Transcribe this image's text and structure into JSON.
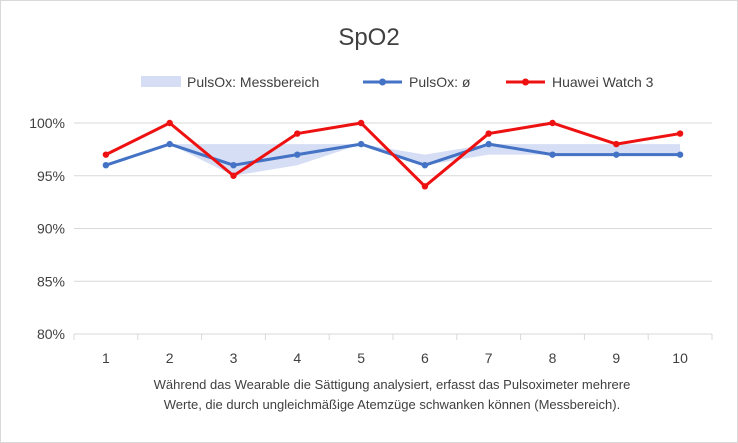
{
  "chart_data": {
    "type": "line",
    "title": "SpO2",
    "xlabel": "",
    "ylabel": "",
    "categories": [
      "1",
      "2",
      "3",
      "4",
      "5",
      "6",
      "7",
      "8",
      "9",
      "10"
    ],
    "ylim": [
      80,
      100
    ],
    "yticks": [
      80,
      85,
      90,
      95,
      100
    ],
    "ytick_labels": [
      "80%",
      "85%",
      "90%",
      "95%",
      "100%"
    ],
    "grid": true,
    "legend_position": "top",
    "range_band": {
      "name": "PulsOx: Messbereich",
      "low": [
        96,
        98,
        95,
        96,
        98,
        96,
        97,
        97,
        97,
        97
      ],
      "high": [
        96,
        98,
        98,
        98,
        98,
        97,
        98,
        98,
        98,
        98
      ],
      "color": "#d5def5"
    },
    "series": [
      {
        "name": "PulsOx: ø",
        "values": [
          96,
          98,
          96,
          97,
          98,
          96,
          98,
          97,
          97,
          97
        ],
        "color": "#4472c4"
      },
      {
        "name": "Huawei Watch 3",
        "values": [
          97,
          100,
          95,
          99,
          100,
          94,
          99,
          100,
          98,
          99
        ],
        "color": "#ee1111"
      }
    ],
    "caption_lines": [
      "Während das Wearable die Sättigung analysiert, erfasst das Pulsoximeter mehrere",
      "Werte, die durch ungleichmäßige Atemzüge schwanken können (Messbereich)."
    ]
  }
}
